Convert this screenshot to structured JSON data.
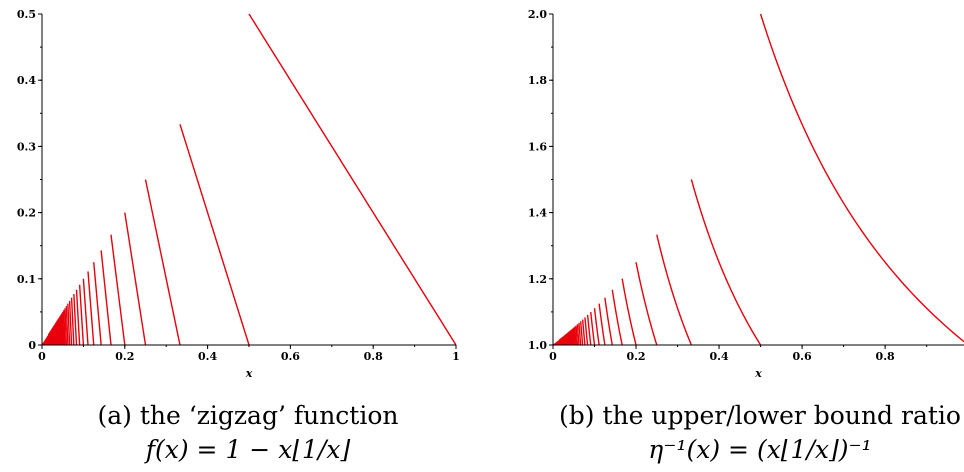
{
  "chart_data": [
    {
      "id": "a",
      "type": "line",
      "function": "1 - x*floor(1/x)",
      "xlabel": "x",
      "ylabel": "",
      "xlim": [
        0,
        1
      ],
      "ylim": [
        0,
        0.5
      ],
      "xticks": [
        "0",
        "0.2",
        "0.4",
        "0.6",
        "0.8",
        "1"
      ],
      "yticks": [
        "0",
        "0.1",
        "0.2",
        "0.3",
        "0.4",
        "0.5"
      ],
      "series_color": "#e8000b",
      "grid": false,
      "caption_line1": "(a) the ‘zigzag’ function",
      "caption_line2": "f(x) = 1 − x⌊1/x⌋",
      "points": [
        {
          "x": 0.5,
          "y": 0.5
        },
        {
          "x": 1.0,
          "y": 0.0
        },
        {
          "x": 0.3333,
          "y": 0.3333
        },
        {
          "x": 0.5,
          "y": 0.0
        },
        {
          "x": 0.25,
          "y": 0.25
        },
        {
          "x": 0.3333,
          "y": 0.0
        },
        {
          "x": 0.2,
          "y": 0.2
        },
        {
          "x": 0.25,
          "y": 0.0
        },
        {
          "x": 0.1667,
          "y": 0.1667
        },
        {
          "x": 0.2,
          "y": 0.0
        }
      ]
    },
    {
      "id": "b",
      "type": "line",
      "function": "1/(x*floor(1/x))",
      "xlabel": "x",
      "ylabel": "",
      "xlim": [
        0,
        0.99
      ],
      "ylim": [
        1.0,
        2.0
      ],
      "xticks": [
        "0",
        "0.2",
        "0.4",
        "0.6",
        "0.8"
      ],
      "yticks": [
        "1.0",
        "1.2",
        "1.4",
        "1.6",
        "1.8",
        "2.0"
      ],
      "series_color": "#e8000b",
      "grid": false,
      "caption_line1": "(b) the upper/lower bound ratio",
      "caption_line2": "η⁻¹(x) = (x⌊1/x⌋)⁻¹",
      "points": [
        {
          "x": 0.5,
          "y": 2.0
        },
        {
          "x": 0.99,
          "y": 1.0101
        },
        {
          "x": 0.3333,
          "y": 1.5
        },
        {
          "x": 0.5,
          "y": 1.0
        },
        {
          "x": 0.25,
          "y": 1.3333
        },
        {
          "x": 0.3333,
          "y": 1.0
        },
        {
          "x": 0.2,
          "y": 1.25
        },
        {
          "x": 0.25,
          "y": 1.0
        }
      ]
    }
  ]
}
